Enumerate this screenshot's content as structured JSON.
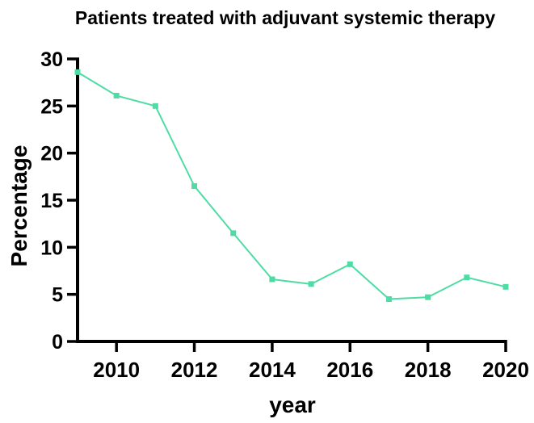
{
  "chart_data": {
    "type": "line",
    "title": "Patients treated with adjuvant systemic therapy",
    "xlabel": "year",
    "ylabel": "Percentage",
    "x": [
      2009,
      2010,
      2011,
      2012,
      2013,
      2014,
      2015,
      2016,
      2017,
      2018,
      2019,
      2020
    ],
    "series": [
      {
        "name": "Patients treated with adjuvant systemic therapy",
        "color": "#4EDCA4",
        "marker": "square",
        "values": [
          28.6,
          26.1,
          25.0,
          16.5,
          11.5,
          6.6,
          6.1,
          8.2,
          4.5,
          4.7,
          6.8,
          5.8
        ]
      }
    ],
    "xlim": [
      2009,
      2020
    ],
    "ylim": [
      0,
      30
    ],
    "xticks": [
      2010,
      2012,
      2014,
      2016,
      2018,
      2020
    ],
    "yticks": [
      0,
      5,
      10,
      15,
      20,
      25,
      30
    ],
    "grid": false,
    "legend": "none",
    "axis_color": "#000000",
    "background_color": "#FFFFFF"
  }
}
